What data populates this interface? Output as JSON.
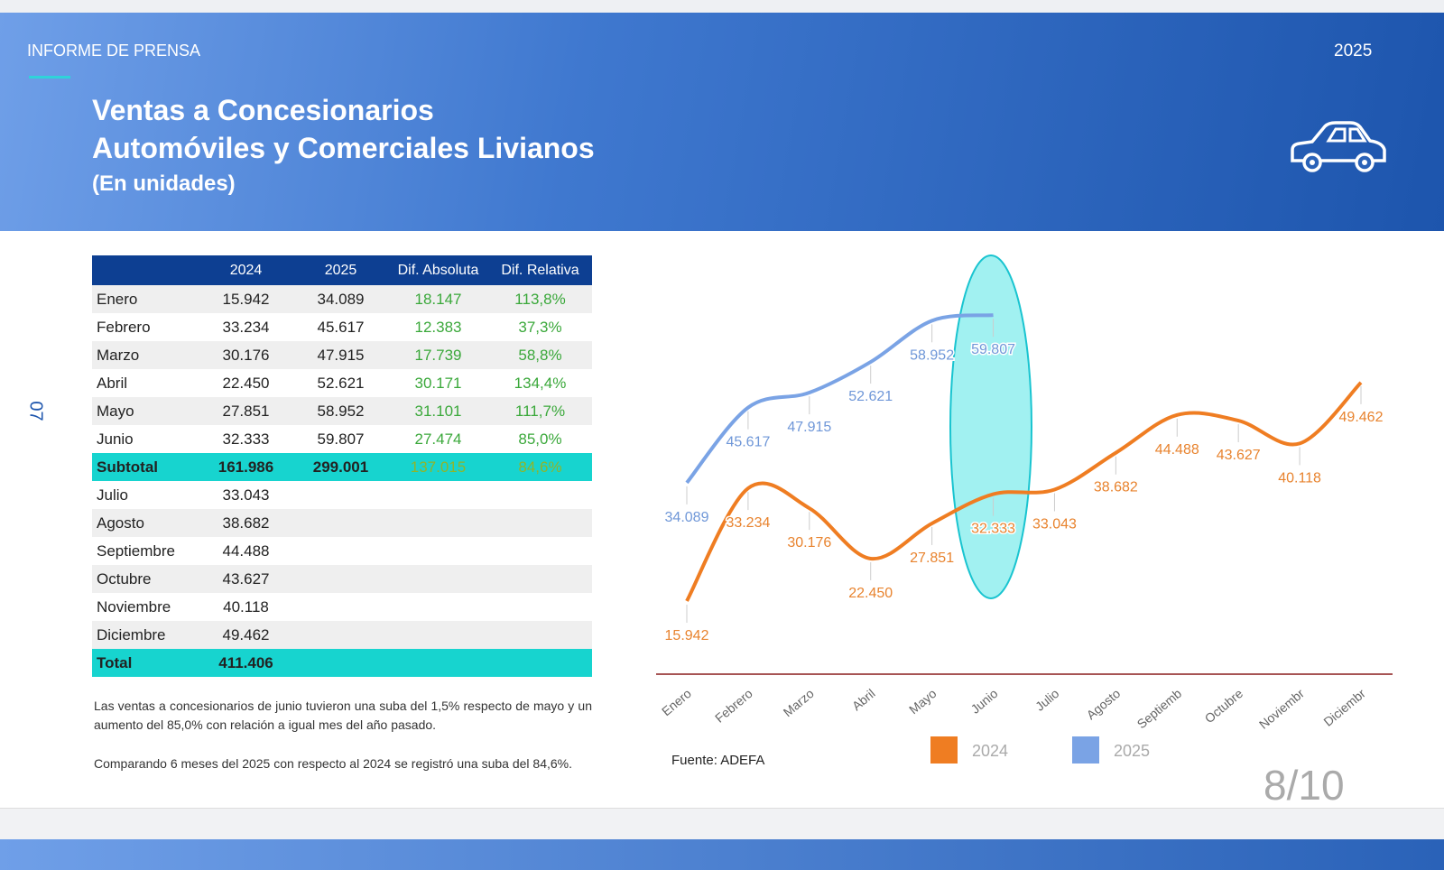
{
  "header": {
    "label": "INFORME DE PRENSA",
    "year": "2025",
    "title_lines": [
      "Ventas a Concesionarios",
      "Automóviles y Comerciales Livianos"
    ],
    "subtitle": "(En unidades)"
  },
  "section_number": "07",
  "table": {
    "columns": [
      "2024",
      "2025",
      "Dif. Absoluta",
      "Dif. Relativa"
    ],
    "rows": [
      [
        "Enero",
        "15.942",
        "34.089",
        "18.147",
        "113,8%"
      ],
      [
        "Febrero",
        "33.234",
        "45.617",
        "12.383",
        "37,3%"
      ],
      [
        "Marzo",
        "30.176",
        "47.915",
        "17.739",
        "58,8%"
      ],
      [
        "Abril",
        "22.450",
        "52.621",
        "30.171",
        "134,4%"
      ],
      [
        "Mayo",
        "27.851",
        "58.952",
        "31.101",
        "111,7%"
      ],
      [
        "Junio",
        "32.333",
        "59.807",
        "27.474",
        "85,0%"
      ],
      [
        "Subtotal",
        "161.986",
        "299.001",
        "137.015",
        "84,6%"
      ],
      [
        "Julio",
        "33.043"
      ],
      [
        "Agosto",
        "38.682"
      ],
      [
        "Septiembre",
        "44.488"
      ],
      [
        "Octubre",
        "43.627"
      ],
      [
        "Noviembre",
        "40.118"
      ],
      [
        "Diciembre",
        "49.462"
      ],
      [
        "Total",
        "411.406"
      ]
    ]
  },
  "paragraphs": [
    "Las ventas a concesionarios de junio tuvieron una suba del 1,5% respecto de mayo y un aumento del 85,0% con relación a igual mes del año pasado.",
    "Comparando 6 meses del 2025 con respecto al 2024 se registró una suba del 84,6%."
  ],
  "chart_data": {
    "type": "line",
    "categories": [
      "Enero",
      "Febrero",
      "Marzo",
      "Abril",
      "Mayo",
      "Junio",
      "Julio",
      "Agosto",
      "Septiemb",
      "Octubre",
      "Noviembr",
      "Diciembr"
    ],
    "series": [
      {
        "name": "2024",
        "color": "#ef7d22",
        "values": [
          15942,
          33234,
          30176,
          22450,
          27851,
          32333,
          33043,
          38682,
          44488,
          43627,
          40118,
          49462
        ],
        "value_labels": [
          "15.942",
          "33.234",
          "30.176",
          "22.450",
          "27.851",
          "32.333",
          "33.043",
          "38.682",
          "44.488",
          "43.627",
          "40.118",
          "49.462"
        ]
      },
      {
        "name": "2025",
        "color": "#7aa3e5",
        "values": [
          34089,
          45617,
          47915,
          52621,
          58952,
          59807,
          null,
          null,
          null,
          null,
          null,
          null
        ],
        "value_labels": [
          "34.089",
          "45.617",
          "47.915",
          "52.621",
          "58.952",
          "59.807",
          null,
          null,
          null,
          null,
          null,
          null
        ]
      }
    ],
    "ylim": [
      5000,
      68000
    ]
  },
  "source": "Fuente: ADEFA",
  "page": "8/10"
}
